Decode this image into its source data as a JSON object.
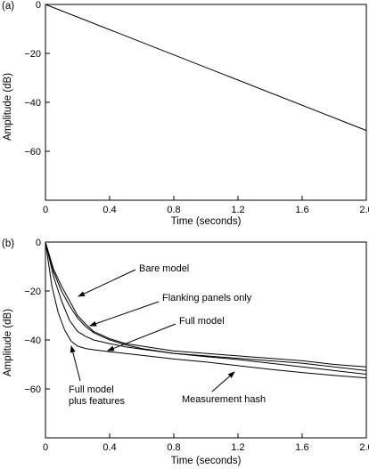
{
  "chart_data": [
    {
      "type": "line",
      "panel_label": "(a)",
      "xlabel": "Time (seconds)",
      "ylabel": "Amplitude (dB)",
      "xlim": [
        0,
        2.0
      ],
      "ylim": [
        -80,
        0
      ],
      "xticks": [
        0,
        0.4,
        0.8,
        1.2,
        1.6,
        2.0
      ],
      "xtick_labels": [
        "0",
        "0.4",
        "0.8",
        "1.2",
        "1.6",
        "2.0"
      ],
      "yticks": [
        0,
        -20,
        -40,
        -60
      ],
      "ytick_labels": [
        "0",
        "−20",
        "−40",
        "−60"
      ],
      "grid": false,
      "series": [
        {
          "x": [
            0,
            2.0
          ],
          "y": [
            0,
            -51.5
          ]
        }
      ]
    },
    {
      "type": "line",
      "panel_label": "(b)",
      "xlabel": "Time (seconds)",
      "ylabel": "Amplitude (dB)",
      "xlim": [
        0,
        2.0
      ],
      "ylim": [
        -80,
        0
      ],
      "xticks": [
        0,
        0.4,
        0.8,
        1.2,
        1.6,
        2.0
      ],
      "xtick_labels": [
        "0",
        "0.4",
        "0.8",
        "1.2",
        "1.6",
        "2.0"
      ],
      "yticks": [
        0,
        -20,
        -40,
        -60
      ],
      "ytick_labels": [
        "0",
        "−20",
        "−40",
        "−60"
      ],
      "grid": false,
      "series": [
        {
          "x": [
            0,
            0.05,
            0.1,
            0.15,
            0.2,
            0.25,
            0.3,
            0.4,
            0.5,
            0.6,
            0.8,
            1.0,
            1.2,
            1.4,
            1.6,
            1.8,
            2.0
          ],
          "y": [
            0,
            -11,
            -18,
            -24,
            -30,
            -33.5,
            -36.5,
            -39.5,
            -41.5,
            -42.5,
            -44.5,
            -45.5,
            -46.5,
            -47.5,
            -48.5,
            -50,
            -51
          ]
        },
        {
          "x": [
            0,
            0.05,
            0.1,
            0.15,
            0.2,
            0.25,
            0.3,
            0.4,
            0.5,
            0.6,
            0.8,
            1.0,
            1.2,
            1.4,
            1.6,
            1.8,
            2.0
          ],
          "y": [
            0,
            -12,
            -20,
            -26,
            -31,
            -34.5,
            -37,
            -40,
            -42,
            -43.5,
            -45.5,
            -46.5,
            -47.5,
            -48.5,
            -49.5,
            -51,
            -52.5
          ]
        },
        {
          "x": [
            0,
            0.05,
            0.1,
            0.15,
            0.2,
            0.25,
            0.3,
            0.4,
            0.5,
            0.6,
            0.8,
            1.0,
            1.2,
            1.4,
            1.6,
            1.8,
            2.0
          ],
          "y": [
            0,
            -14,
            -24,
            -32,
            -36.5,
            -38.5,
            -40,
            -41.5,
            -42.8,
            -43.8,
            -45.5,
            -46.8,
            -48,
            -49.5,
            -51,
            -52.5,
            -54
          ]
        },
        {
          "x": [
            0,
            0.04,
            0.08,
            0.12,
            0.16,
            0.2,
            0.25,
            0.3,
            0.4,
            0.6,
            0.8,
            1.0,
            1.2,
            1.4,
            1.6,
            1.8,
            2.0
          ],
          "y": [
            0,
            -18,
            -29,
            -36,
            -40.5,
            -42.5,
            -43.5,
            -44,
            -44.8,
            -46.3,
            -47.8,
            -49,
            -50.5,
            -52,
            -53.3,
            -54.5,
            -55.5
          ]
        }
      ],
      "annotations": [
        {
          "text": "Bare model"
        },
        {
          "text": "Flanking panels only"
        },
        {
          "text": "Full model"
        },
        {
          "text": "Full model\nplus features"
        },
        {
          "text": "Measurement hash"
        }
      ]
    }
  ]
}
